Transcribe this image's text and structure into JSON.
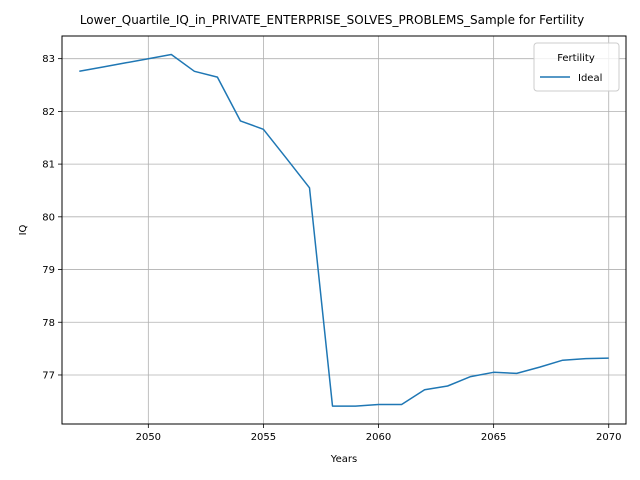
{
  "chart_data": {
    "type": "line",
    "title": "Lower_Quartile_IQ_in_PRIVATE_ENTERPRISE_SOLVES_PROBLEMS_Sample for Fertility",
    "xlabel": "Years",
    "ylabel": "IQ",
    "xlim": [
      2046.25,
      2070.75
    ],
    "ylim": [
      76.07,
      83.43
    ],
    "xticks": [
      2050,
      2055,
      2060,
      2065,
      2070
    ],
    "yticks": [
      77,
      78,
      79,
      80,
      81,
      82,
      83
    ],
    "grid": true,
    "legend": {
      "title": "Fertility",
      "placement": "top-right"
    },
    "series": [
      {
        "name": "Ideal",
        "color": "#1f77b4",
        "x": [
          2047,
          2048,
          2049,
          2050,
          2051,
          2052,
          2053,
          2054,
          2055,
          2056,
          2057,
          2058,
          2059,
          2060,
          2061,
          2062,
          2063,
          2064,
          2065,
          2066,
          2067,
          2068,
          2069,
          2070
        ],
        "y": [
          82.76,
          82.84,
          82.92,
          83.0,
          83.08,
          82.76,
          82.65,
          81.82,
          81.66,
          81.11,
          80.55,
          76.41,
          76.41,
          76.44,
          76.44,
          76.72,
          76.79,
          76.97,
          77.05,
          77.03,
          77.15,
          77.28,
          77.31,
          77.32
        ]
      }
    ]
  }
}
